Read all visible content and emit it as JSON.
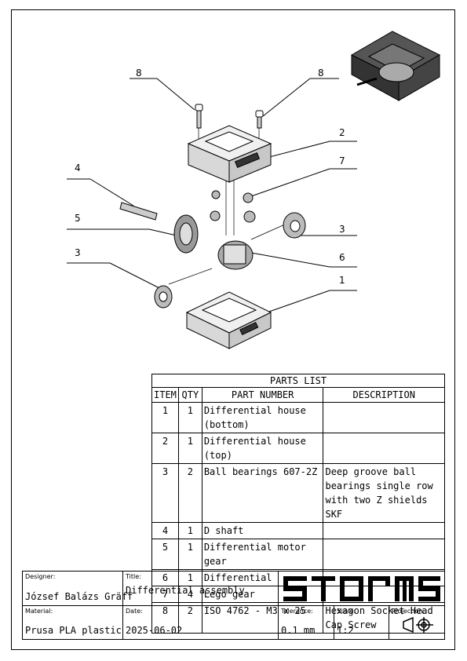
{
  "balloons": [
    "8",
    "8",
    "2",
    "7",
    "4",
    "5",
    "3",
    "6",
    "3",
    "1"
  ],
  "parts_list": {
    "title": "PARTS LIST",
    "headers": [
      "ITEM",
      "QTY",
      "PART NUMBER",
      "DESCRIPTION"
    ],
    "rows": [
      {
        "item": "1",
        "qty": "1",
        "part": "Differential house (bottom)",
        "desc": ""
      },
      {
        "item": "2",
        "qty": "1",
        "part": "Differential house (top)",
        "desc": ""
      },
      {
        "item": "3",
        "qty": "2",
        "part": "Ball bearings 607-2Z",
        "desc": "Deep groove ball bearings single row with two Z shields SKF"
      },
      {
        "item": "4",
        "qty": "1",
        "part": "D shaft",
        "desc": ""
      },
      {
        "item": "5",
        "qty": "1",
        "part": "Differential motor gear",
        "desc": ""
      },
      {
        "item": "6",
        "qty": "1",
        "part": "Differential",
        "desc": ""
      },
      {
        "item": "7",
        "qty": "4",
        "part": "Lego gear",
        "desc": ""
      },
      {
        "item": "8",
        "qty": "2",
        "part": "ISO 4762 - M3 x 25",
        "desc": "Hexagon Socket Head Cap Screw"
      }
    ]
  },
  "title_block": {
    "designer_label": "Designer:",
    "designer": "József Balázs Gräff",
    "title_label": "Title:",
    "title": "Differential assembly",
    "logo_text": "STORMS",
    "material_label": "Material:",
    "material": "Prusa PLA plastic",
    "date_label": "Date:",
    "date": "2025-06-02",
    "tolerance_label": "Tolerance:",
    "tolerance": "0.1 mm",
    "scale_label": "Scale:",
    "scale": "1:2",
    "projection_label": "Projection:"
  }
}
